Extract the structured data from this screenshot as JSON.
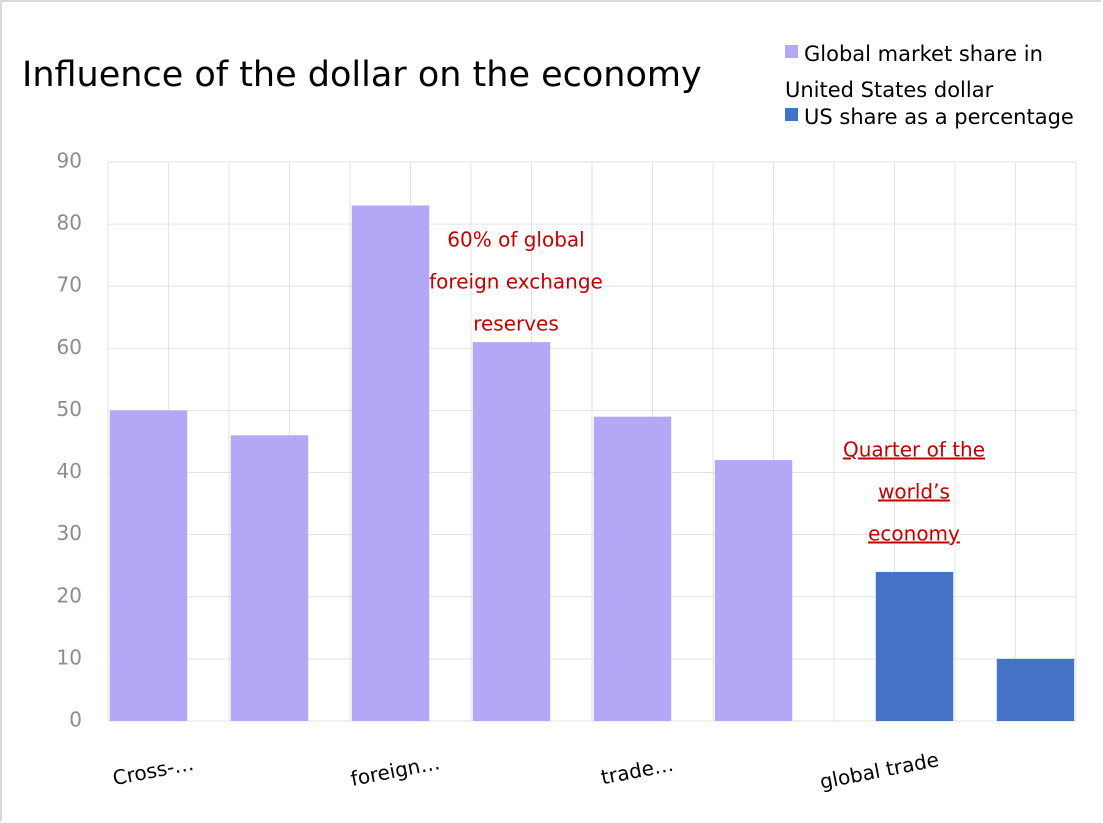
{
  "chart_data": {
    "type": "bar",
    "title": "Influence of the dollar on the economy",
    "categories": [
      "Cross-…",
      null,
      "foreign…",
      null,
      "trade…",
      null,
      "global trade",
      null
    ],
    "series": [
      {
        "name": "Global market share in United States dollar",
        "color": "#b4a7f5",
        "values": [
          50,
          46,
          83,
          61,
          49,
          42,
          null,
          null
        ]
      },
      {
        "name": "US share as a percentage",
        "color": "#4472c4",
        "values": [
          null,
          null,
          null,
          null,
          null,
          null,
          24,
          10
        ]
      }
    ],
    "ylim": [
      0,
      90
    ],
    "yticks": [
      0,
      10,
      20,
      30,
      40,
      50,
      60,
      70,
      80,
      90
    ],
    "grid": true,
    "legend": "top-right",
    "annotations": [
      {
        "lines": [
          "60% of global",
          "foreign exchange",
          "reserves"
        ],
        "color": "#c00000",
        "underline": false
      },
      {
        "lines": [
          "Quarter of the",
          "world’s",
          "economy"
        ],
        "color": "#c00000",
        "underline": true
      }
    ]
  }
}
